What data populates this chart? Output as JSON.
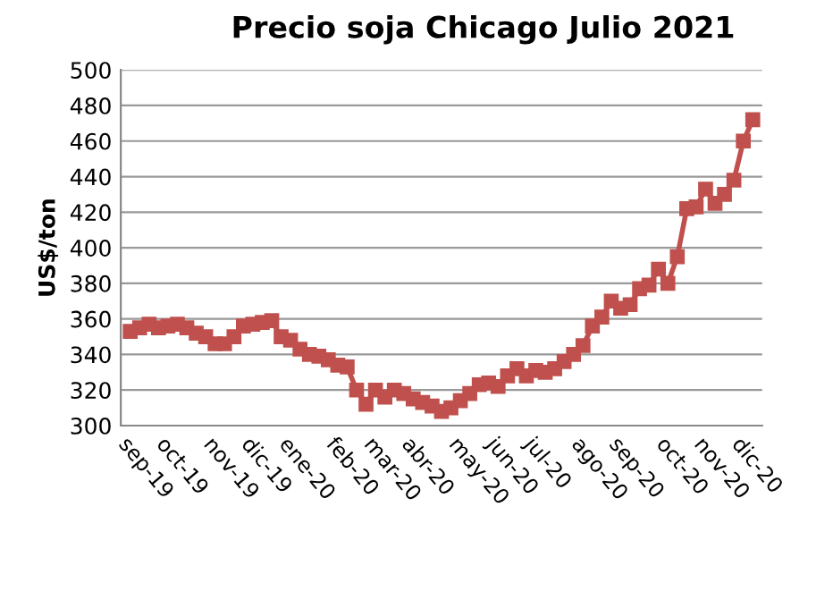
{
  "chart_data": {
    "type": "line",
    "title": "Precio soja Chicago Julio 2021",
    "ylabel": "US$/ton",
    "categories": [
      "sep-19",
      null,
      null,
      null,
      "oct-19",
      null,
      null,
      null,
      null,
      "nov-19",
      null,
      null,
      null,
      "dic-19",
      null,
      null,
      null,
      "ene-20",
      null,
      null,
      null,
      null,
      "feb-20",
      null,
      null,
      null,
      "mar-20",
      null,
      null,
      null,
      "abr-20",
      null,
      null,
      null,
      null,
      "may-20",
      null,
      null,
      null,
      "jun-20",
      null,
      null,
      null,
      "jul-20",
      null,
      null,
      null,
      null,
      "ago-20",
      null,
      null,
      null,
      "sep-20",
      null,
      null,
      null,
      null,
      "oct-20",
      null,
      null,
      null,
      "nov-20",
      null,
      null,
      null,
      "dic-20",
      null
    ],
    "series": [
      {
        "color": "#c0504d",
        "values": [
          353,
          355,
          357,
          355,
          356,
          357,
          355,
          352,
          350,
          346,
          346,
          350,
          356,
          357,
          358,
          359,
          350,
          348,
          343,
          340,
          339,
          337,
          334,
          333,
          320,
          312,
          320,
          316,
          320,
          318,
          315,
          313,
          311,
          308,
          310,
          314,
          318,
          323,
          324,
          322,
          328,
          332,
          328,
          331,
          330,
          332,
          336,
          340,
          345,
          356,
          361,
          370,
          366,
          368,
          377,
          379,
          388,
          380,
          395,
          422,
          423,
          433,
          425,
          430,
          438,
          460,
          472
        ]
      }
    ],
    "ylim": [
      300,
      500
    ],
    "yticks": [
      300,
      320,
      340,
      360,
      380,
      400,
      420,
      440,
      460,
      480,
      500
    ],
    "grid": "y",
    "marker": "square",
    "line_style": "solid",
    "legend": false
  }
}
